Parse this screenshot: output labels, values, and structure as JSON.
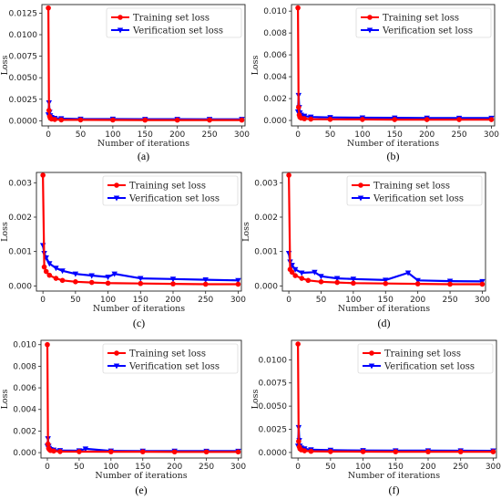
{
  "colors": {
    "training": "#ff0000",
    "verification": "#0000ff",
    "frame": "#222222"
  },
  "legend": {
    "training": "Training set loss",
    "verification": "Verification set loss"
  },
  "xlabel": "Number of iterations",
  "ylabel": "Loss",
  "chart_data": [
    {
      "type": "line",
      "panel_label": "(a)",
      "legend_position": "top-right",
      "xlim": [
        -10,
        305
      ],
      "ylim": [
        -0.0006,
        0.0135
      ],
      "xticks": [
        0,
        50,
        100,
        150,
        200,
        250,
        300
      ],
      "yticks": [
        "0.0000",
        "0.0025",
        "0.0050",
        "0.0075",
        "0.0100",
        "0.0125"
      ],
      "series": [
        {
          "name": "Training set loss",
          "x": [
            0,
            1,
            2,
            3,
            5,
            10,
            20,
            50,
            100,
            150,
            200,
            250,
            300
          ],
          "y": [
            0.0131,
            0.0012,
            0.0005,
            0.0003,
            0.0002,
            0.00015,
            0.0001,
            0.0001,
            9e-05,
            8e-05,
            8e-05,
            8e-05,
            8e-05
          ]
        },
        {
          "name": "Verification set loss",
          "x": [
            0,
            1,
            2,
            3,
            5,
            10,
            20,
            50,
            100,
            150,
            200,
            250,
            300
          ],
          "y": [
            0.0007,
            0.0021,
            0.001,
            0.0006,
            0.0004,
            0.0003,
            0.00025,
            0.0002,
            0.0002,
            0.00018,
            0.00018,
            0.00017,
            0.00017
          ]
        }
      ]
    },
    {
      "type": "line",
      "panel_label": "(b)",
      "legend_position": "top-right",
      "xlim": [
        -10,
        305
      ],
      "ylim": [
        -0.0005,
        0.0106
      ],
      "xticks": [
        0,
        50,
        100,
        150,
        200,
        250,
        300
      ],
      "yticks": [
        "0.000",
        "0.002",
        "0.004",
        "0.006",
        "0.008",
        "0.010"
      ],
      "series": [
        {
          "name": "Training set loss",
          "x": [
            0,
            1,
            2,
            3,
            5,
            10,
            20,
            50,
            100,
            150,
            200,
            250,
            300
          ],
          "y": [
            0.0103,
            0.0012,
            0.0005,
            0.0003,
            0.00022,
            0.00016,
            0.00012,
            0.0001,
            9e-05,
            8e-05,
            8e-05,
            8e-05,
            8e-05
          ]
        },
        {
          "name": "Verification set loss",
          "x": [
            0,
            1,
            2,
            3,
            5,
            10,
            20,
            50,
            100,
            150,
            200,
            250,
            300
          ],
          "y": [
            0.0008,
            0.0023,
            0.0012,
            0.0007,
            0.0005,
            0.0004,
            0.00032,
            0.00028,
            0.00025,
            0.00024,
            0.00023,
            0.00022,
            0.00022
          ]
        }
      ]
    },
    {
      "type": "line",
      "panel_label": "(c)",
      "legend_position": "top-right",
      "xlim": [
        -10,
        305
      ],
      "ylim": [
        -0.00015,
        0.0033
      ],
      "xticks": [
        0,
        50,
        100,
        150,
        200,
        250,
        300
      ],
      "yticks": [
        "0.000",
        "0.001",
        "0.002",
        "0.003"
      ],
      "series": [
        {
          "name": "Training set loss",
          "x": [
            0,
            2,
            5,
            10,
            20,
            30,
            50,
            75,
            100,
            150,
            200,
            250,
            300
          ],
          "y": [
            0.00322,
            0.00055,
            0.00042,
            0.00031,
            0.00022,
            0.00016,
            0.00012,
            0.0001,
            8e-05,
            7e-05,
            6e-05,
            5e-05,
            5e-05
          ]
        },
        {
          "name": "Verification set loss",
          "x": [
            0,
            2,
            5,
            10,
            20,
            30,
            50,
            75,
            100,
            110,
            150,
            200,
            250,
            300
          ],
          "y": [
            0.00118,
            0.00095,
            0.00082,
            0.00065,
            0.00052,
            0.00044,
            0.00035,
            0.0003,
            0.00026,
            0.00035,
            0.00022,
            0.0002,
            0.00018,
            0.00016
          ]
        }
      ]
    },
    {
      "type": "line",
      "panel_label": "(d)",
      "legend_position": "top-right",
      "xlim": [
        -10,
        305
      ],
      "ylim": [
        -0.00015,
        0.0033
      ],
      "xticks": [
        0,
        50,
        100,
        150,
        200,
        250,
        300
      ],
      "yticks": [
        "0.000",
        "0.001",
        "0.002",
        "0.003"
      ],
      "series": [
        {
          "name": "Training set loss",
          "x": [
            0,
            2,
            5,
            10,
            20,
            30,
            50,
            75,
            100,
            150,
            200,
            250,
            300
          ],
          "y": [
            0.00322,
            0.00048,
            0.0004,
            0.0003,
            0.00022,
            0.00016,
            0.00012,
            0.0001,
            8e-05,
            7e-05,
            6e-05,
            5e-05,
            5e-05
          ]
        },
        {
          "name": "Verification set loss",
          "x": [
            0,
            2,
            5,
            10,
            20,
            40,
            50,
            75,
            100,
            150,
            185,
            200,
            250,
            300
          ],
          "y": [
            0.00095,
            0.0007,
            0.0006,
            0.00048,
            0.00038,
            0.0004,
            0.00028,
            0.00022,
            0.0002,
            0.00017,
            0.00038,
            0.00016,
            0.00014,
            0.00013
          ]
        }
      ]
    },
    {
      "type": "line",
      "panel_label": "(e)",
      "legend_position": "top-right",
      "xlim": [
        -10,
        305
      ],
      "ylim": [
        -0.0005,
        0.0104
      ],
      "xticks": [
        0,
        50,
        100,
        150,
        200,
        250,
        300
      ],
      "yticks": [
        "0.000",
        "0.002",
        "0.004",
        "0.006",
        "0.008",
        "0.010"
      ],
      "series": [
        {
          "name": "Training set loss",
          "x": [
            0,
            1,
            2,
            3,
            5,
            10,
            20,
            50,
            100,
            150,
            200,
            250,
            300
          ],
          "y": [
            0.01,
            0.0008,
            0.0004,
            0.0003,
            0.0002,
            0.00015,
            0.0001,
            9e-05,
            8e-05,
            8e-05,
            7e-05,
            7e-05,
            7e-05
          ]
        },
        {
          "name": "Verification set loss",
          "x": [
            0,
            1,
            2,
            3,
            5,
            10,
            20,
            50,
            60,
            100,
            150,
            200,
            250,
            300
          ],
          "y": [
            0.0006,
            0.0013,
            0.0006,
            0.0004,
            0.0003,
            0.00025,
            0.0002,
            0.00018,
            0.00035,
            0.00016,
            0.00015,
            0.00015,
            0.00014,
            0.00014
          ]
        }
      ]
    },
    {
      "type": "line",
      "panel_label": "(f)",
      "legend_position": "top-right",
      "xlim": [
        -10,
        305
      ],
      "ylim": [
        -0.0006,
        0.0121
      ],
      "xticks": [
        0,
        50,
        100,
        150,
        200,
        250,
        300
      ],
      "yticks": [
        "0.0000",
        "0.0025",
        "0.0050",
        "0.0075",
        "0.0100"
      ],
      "series": [
        {
          "name": "Training set loss",
          "x": [
            0,
            1,
            2,
            3,
            5,
            10,
            20,
            50,
            100,
            150,
            200,
            250,
            300
          ],
          "y": [
            0.0117,
            0.0012,
            0.0006,
            0.0004,
            0.00028,
            0.00018,
            0.00013,
            0.0001,
            9e-05,
            8e-05,
            8e-05,
            8e-05,
            8e-05
          ]
        },
        {
          "name": "Verification set loss",
          "x": [
            0,
            1,
            2,
            3,
            5,
            10,
            20,
            50,
            100,
            150,
            200,
            250,
            300
          ],
          "y": [
            0.0007,
            0.0027,
            0.0013,
            0.0007,
            0.0005,
            0.0004,
            0.0003,
            0.00025,
            0.00022,
            0.0002,
            0.0002,
            0.00019,
            0.00018
          ]
        }
      ]
    }
  ]
}
